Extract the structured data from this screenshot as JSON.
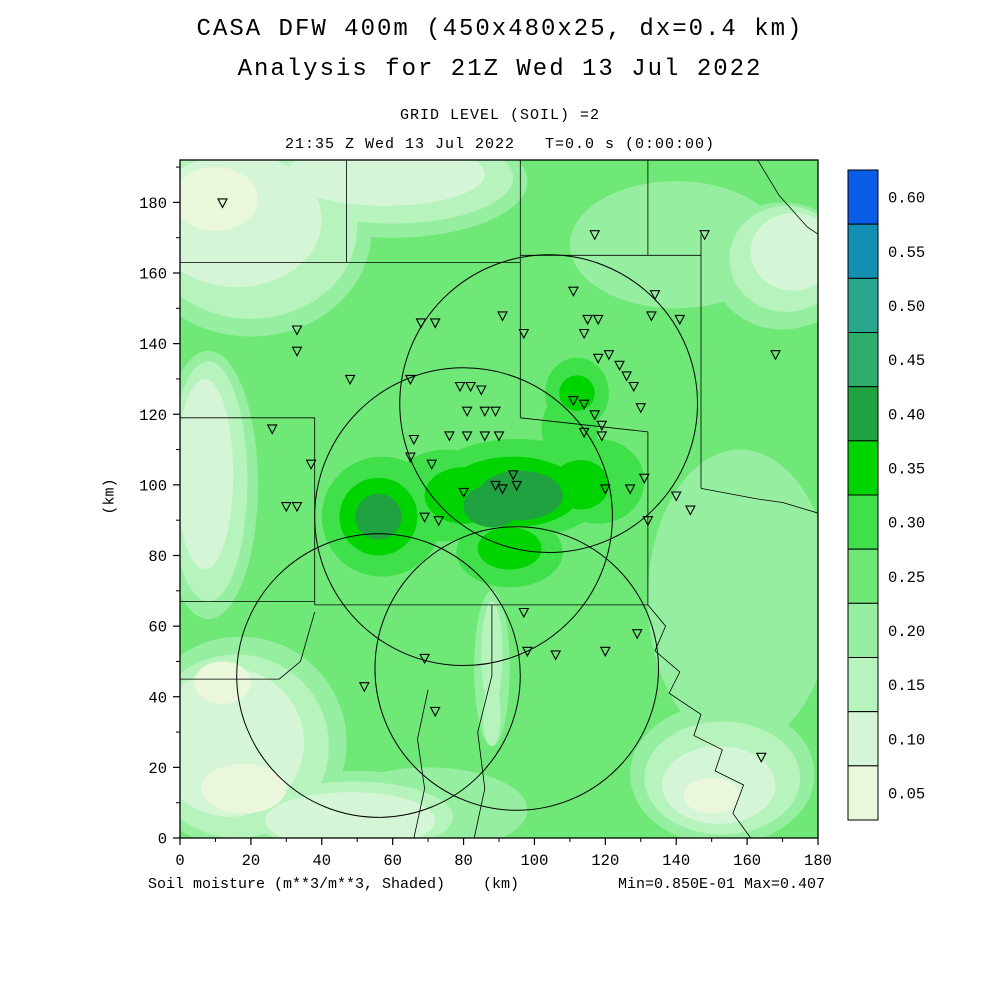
{
  "header": {
    "title": "CASA DFW 400m (450x480x25, dx=0.4 km)",
    "subtitle": "Analysis for 21Z Wed 13 Jul 2022",
    "grid_level": "GRID LEVEL (SOIL) =2",
    "time_line": "21:35 Z Wed 13 Jul 2022   T=0.0 s (0:00:00)"
  },
  "footer": {
    "field_label": "Soil moisture (m**3/m**3, Shaded)",
    "x_axis_label": "(km)",
    "min_max": "Min=0.850E-01 Max=0.407"
  },
  "y_axis_label": "(km)",
  "chart_data": {
    "type": "heatmap",
    "title": "CASA DFW 400m (450x480x25, dx=0.4 km)",
    "subtitle": "Analysis for 21Z Wed 13 Jul 2022",
    "grid_level": "GRID LEVEL (SOIL) =2",
    "valid_time": "21:35 Z Wed 13 Jul 2022",
    "forecast_time": "T=0.0 s (0:00:00)",
    "field": "Soil moisture (m**3/m**3, Shaded)",
    "units": "m**3/m**3",
    "min": 0.085,
    "max": 0.407,
    "xlabel": "(km)",
    "ylabel": "(km)",
    "xlim": [
      0,
      180
    ],
    "ylim": [
      0,
      192
    ],
    "xticks": [
      0,
      20,
      40,
      60,
      80,
      100,
      120,
      140,
      160,
      180
    ],
    "yticks": [
      0,
      20,
      40,
      60,
      80,
      100,
      120,
      140,
      160,
      180
    ],
    "colorbar": {
      "values": [
        "0.60",
        "0.55",
        "0.50",
        "0.45",
        "0.40",
        "0.35",
        "0.30",
        "0.25",
        "0.20",
        "0.15",
        "0.10",
        "0.05"
      ],
      "colors": [
        "#0a5ce6",
        "#1290b4",
        "#2aa68e",
        "#2ead6b",
        "#1fa23f",
        "#00d400",
        "#3fe04a",
        "#6fe878",
        "#96efa0",
        "#b6f3bd",
        "#d4f6d6",
        "#eaf7da"
      ]
    },
    "base_level": "0.25-0.30",
    "base_color": "#6fe878",
    "shade_layers": [
      {
        "level": "0.20-0.25",
        "color": "#96efa0",
        "ellipses": [
          [
            20,
            172,
            34,
            30
          ],
          [
            60,
            186,
            38,
            16
          ],
          [
            8,
            100,
            14,
            38
          ],
          [
            17,
            27,
            30,
            30
          ],
          [
            50,
            7,
            32,
            12
          ],
          [
            153,
            18,
            26,
            20
          ],
          [
            170,
            162,
            20,
            18
          ],
          [
            158,
            68,
            26,
            42
          ],
          [
            140,
            168,
            30,
            18
          ],
          [
            70,
            8,
            28,
            12
          ],
          [
            88,
            48,
            5,
            22
          ]
        ]
      },
      {
        "level": "0.15-0.20",
        "color": "#b6f3bd",
        "ellipses": [
          [
            20,
            173,
            30,
            26
          ],
          [
            60,
            187,
            34,
            13
          ],
          [
            8,
            101,
            11,
            34
          ],
          [
            16,
            26,
            26,
            26
          ],
          [
            49,
            6,
            28,
            10
          ],
          [
            153,
            17,
            22,
            16
          ],
          [
            171,
            164,
            16,
            15
          ],
          [
            88,
            52,
            3,
            15
          ],
          [
            88,
            35,
            2.5,
            9
          ]
        ]
      },
      {
        "level": "0.10-0.15",
        "color": "#d4f6d6",
        "ellipses": [
          [
            16,
            175,
            24,
            19
          ],
          [
            58,
            188,
            28,
            9
          ],
          [
            7,
            103,
            8,
            27
          ],
          [
            14,
            27,
            21,
            21
          ],
          [
            48,
            5,
            24,
            8
          ],
          [
            152,
            15,
            16,
            11
          ],
          [
            173,
            166,
            12,
            11
          ]
        ]
      },
      {
        "level": "0.05-0.10",
        "color": "#eaf7da",
        "ellipses": [
          [
            10,
            181,
            12,
            9
          ],
          [
            12,
            44,
            8,
            6
          ],
          [
            18,
            14,
            12,
            7
          ],
          [
            150,
            12,
            8,
            5
          ]
        ]
      },
      {
        "level": "0.30-0.35",
        "color": "#3fe04a",
        "ellipses": [
          [
            57,
            91,
            17,
            17
          ],
          [
            75,
            97,
            16,
            13
          ],
          [
            95,
            99,
            26,
            14
          ],
          [
            118,
            101,
            13,
            12
          ],
          [
            112,
            126,
            9,
            10
          ],
          [
            110,
            116,
            8,
            10
          ],
          [
            93,
            81,
            15,
            10
          ]
        ]
      },
      {
        "level": "0.35-0.40",
        "color": "#00d400",
        "ellipses": [
          [
            56,
            91,
            11,
            11
          ],
          [
            80,
            97,
            11,
            8
          ],
          [
            94,
            98,
            19,
            10
          ],
          [
            113,
            100,
            8,
            7
          ],
          [
            112,
            126,
            5,
            5
          ],
          [
            93,
            82,
            9,
            6
          ]
        ]
      },
      {
        "level": "0.40-0.45",
        "color": "#1fa23f",
        "ellipses": [
          [
            56,
            91,
            6.5,
            6.5
          ],
          [
            96,
            97,
            12,
            7
          ],
          [
            88,
            94,
            8,
            6
          ]
        ]
      }
    ],
    "county_lines": [
      [
        [
          47,
          192
        ],
        [
          47,
          163
        ]
      ],
      [
        [
          0,
          163
        ],
        [
          96,
          163
        ]
      ],
      [
        [
          96,
          192
        ],
        [
          96,
          163
        ]
      ],
      [
        [
          96,
          165
        ],
        [
          147,
          165
        ]
      ],
      [
        [
          132,
          192
        ],
        [
          132,
          165
        ]
      ],
      [
        [
          147,
          171
        ],
        [
          147,
          99
        ]
      ],
      [
        [
          0,
          119
        ],
        [
          38,
          119
        ]
      ],
      [
        [
          38,
          119
        ],
        [
          38,
          66
        ]
      ],
      [
        [
          0,
          67
        ],
        [
          38,
          67
        ]
      ],
      [
        [
          38,
          66
        ],
        [
          132,
          66
        ]
      ],
      [
        [
          96,
          163
        ],
        [
          96,
          119
        ]
      ],
      [
        [
          96,
          119
        ],
        [
          132,
          115
        ]
      ],
      [
        [
          132,
          115
        ],
        [
          132,
          66
        ]
      ],
      [
        [
          0,
          45
        ],
        [
          28,
          45
        ],
        [
          34,
          50
        ],
        [
          38,
          64
        ]
      ],
      [
        [
          70,
          42
        ],
        [
          67,
          28
        ],
        [
          69,
          14
        ],
        [
          66,
          0
        ]
      ],
      [
        [
          88,
          66
        ],
        [
          88,
          46
        ],
        [
          84,
          30
        ],
        [
          86,
          14
        ],
        [
          83,
          0
        ]
      ],
      [
        [
          132,
          66
        ],
        [
          137,
          60
        ],
        [
          134,
          53
        ],
        [
          141,
          47
        ],
        [
          138,
          41
        ],
        [
          147,
          35
        ],
        [
          145,
          29
        ],
        [
          153,
          25
        ],
        [
          151,
          19
        ],
        [
          159,
          15
        ],
        [
          156,
          7
        ],
        [
          161,
          0
        ]
      ],
      [
        [
          147,
          99
        ],
        [
          163,
          96
        ],
        [
          170,
          95
        ],
        [
          180,
          92
        ]
      ],
      [
        [
          163,
          192
        ],
        [
          169,
          182
        ],
        [
          177,
          173
        ],
        [
          180,
          171
        ]
      ]
    ],
    "radar_circles": [
      {
        "cx": 104,
        "cy": 123,
        "r": 42
      },
      {
        "cx": 80,
        "cy": 91,
        "r": 42
      },
      {
        "cx": 56,
        "cy": 46,
        "r": 40
      },
      {
        "cx": 95,
        "cy": 48,
        "r": 40
      }
    ],
    "station_markers": [
      [
        12,
        180
      ],
      [
        33,
        144
      ],
      [
        33,
        138
      ],
      [
        48,
        130
      ],
      [
        65,
        130
      ],
      [
        68,
        146
      ],
      [
        72,
        146
      ],
      [
        79,
        128
      ],
      [
        82,
        128
      ],
      [
        85,
        127
      ],
      [
        81,
        121
      ],
      [
        86,
        121
      ],
      [
        89,
        121
      ],
      [
        76,
        114
      ],
      [
        81,
        114
      ],
      [
        86,
        114
      ],
      [
        90,
        114
      ],
      [
        66,
        113
      ],
      [
        65,
        108
      ],
      [
        71,
        106
      ],
      [
        69,
        91
      ],
      [
        73,
        90
      ],
      [
        80,
        98
      ],
      [
        89,
        100
      ],
      [
        94,
        103
      ],
      [
        95,
        100
      ],
      [
        91,
        99
      ],
      [
        30,
        94
      ],
      [
        33,
        94
      ],
      [
        37,
        106
      ],
      [
        26,
        116
      ],
      [
        91,
        148
      ],
      [
        97,
        143
      ],
      [
        111,
        155
      ],
      [
        117,
        171
      ],
      [
        115,
        147
      ],
      [
        118,
        147
      ],
      [
        114,
        143
      ],
      [
        121,
        137
      ],
      [
        118,
        136
      ],
      [
        124,
        134
      ],
      [
        126,
        131
      ],
      [
        128,
        128
      ],
      [
        111,
        124
      ],
      [
        114,
        123
      ],
      [
        117,
        120
      ],
      [
        119,
        117
      ],
      [
        114,
        115
      ],
      [
        119,
        114
      ],
      [
        133,
        148
      ],
      [
        134,
        154
      ],
      [
        141,
        147
      ],
      [
        130,
        122
      ],
      [
        120,
        99
      ],
      [
        127,
        99
      ],
      [
        131,
        102
      ],
      [
        140,
        97
      ],
      [
        144,
        93
      ],
      [
        132,
        90
      ],
      [
        148,
        171
      ],
      [
        168,
        137
      ],
      [
        97,
        64
      ],
      [
        98,
        53
      ],
      [
        106,
        52
      ],
      [
        120,
        53
      ],
      [
        129,
        58
      ],
      [
        52,
        43
      ],
      [
        72,
        36
      ],
      [
        69,
        51
      ],
      [
        164,
        23
      ]
    ]
  }
}
